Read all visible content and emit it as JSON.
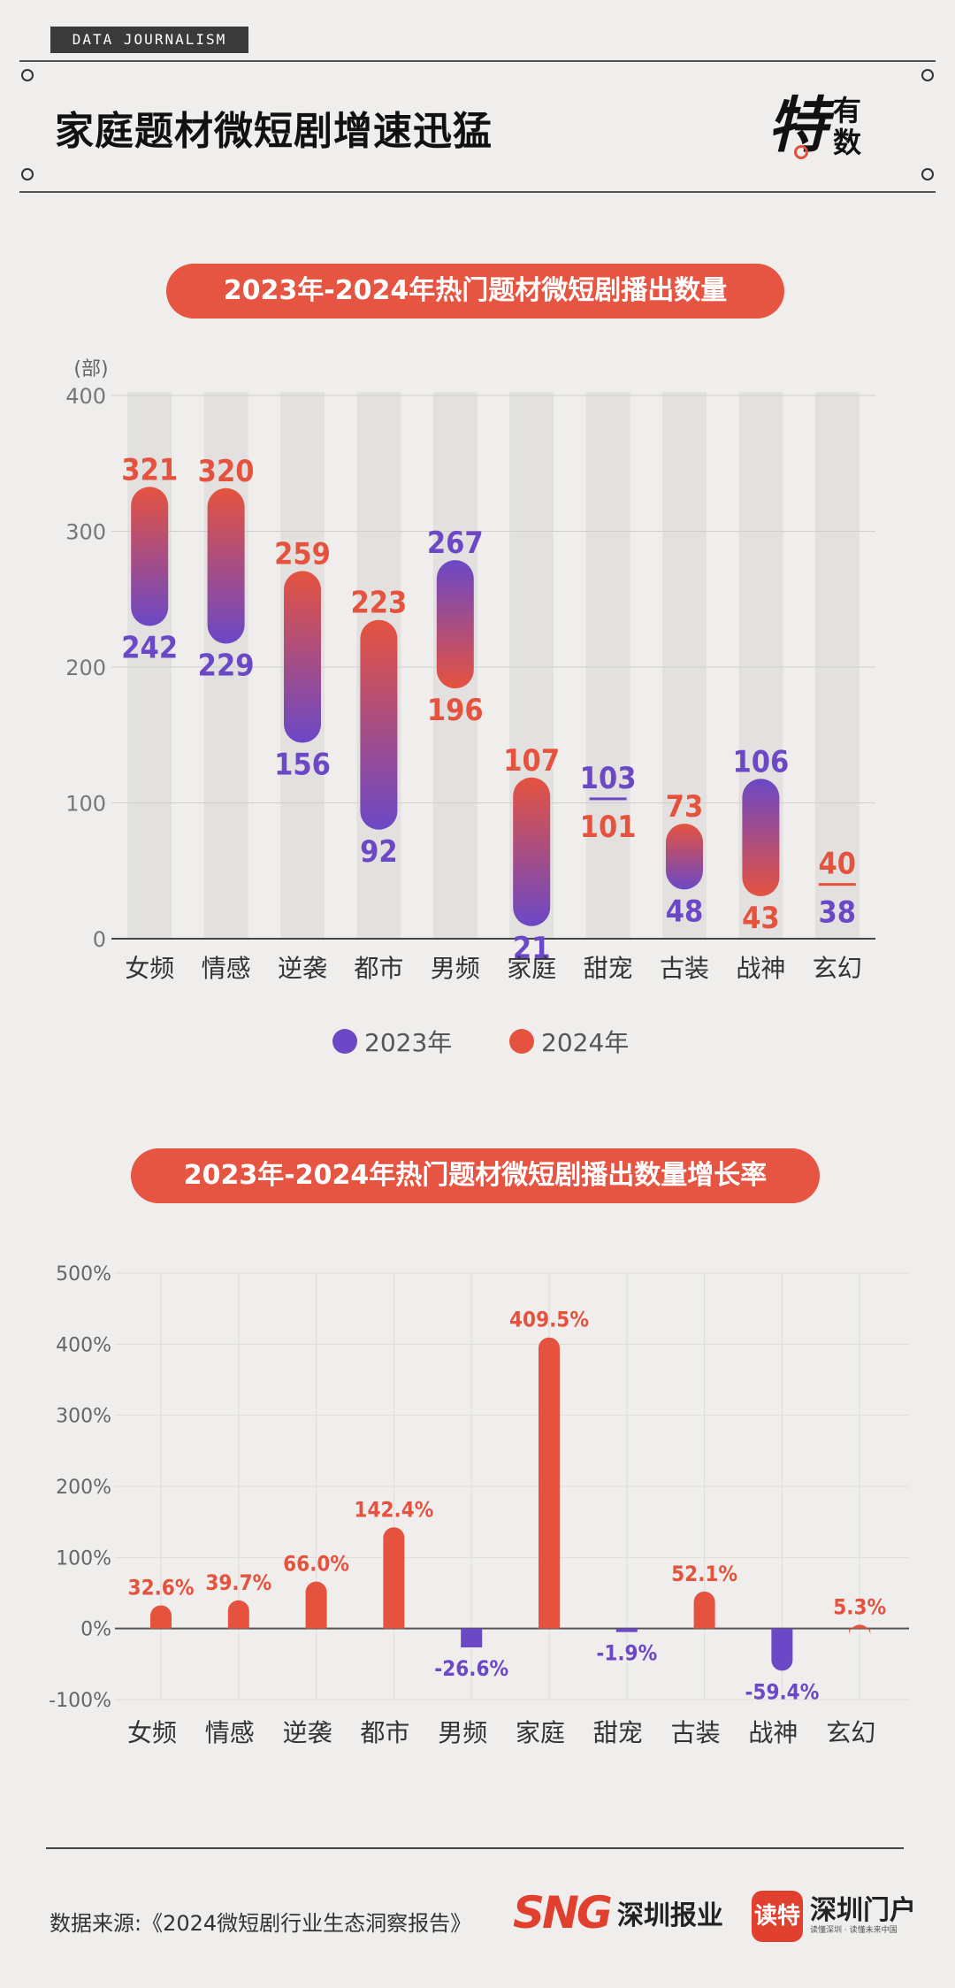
{
  "header": {
    "tag": "DATA  JOURNALISM",
    "title": "家庭题材微短剧增速迅猛",
    "brand_big": "特",
    "brand_small_1": "有",
    "brand_small_2": "数"
  },
  "colors": {
    "accent": "#e65442",
    "series_2023": "#6b48c6",
    "series_2024": "#e5533f",
    "negative_bar": "#6b48c6",
    "track": "#e2e1df"
  },
  "chart_data": [
    {
      "type": "dumbbell",
      "title": "2023年-2024年热门题材微短剧播出数量",
      "ylabel": "(部)",
      "ylim": [
        0,
        400
      ],
      "yticks": [
        0,
        100,
        200,
        300,
        400
      ],
      "grid": true,
      "legend_position": "bottom",
      "categories": [
        "女频",
        "情感",
        "逆袭",
        "都市",
        "男频",
        "家庭",
        "甜宠",
        "古装",
        "战神",
        "玄幻"
      ],
      "series": [
        {
          "name": "2023年",
          "values": [
            242,
            229,
            156,
            92,
            267,
            21,
            103,
            48,
            106,
            38
          ]
        },
        {
          "name": "2024年",
          "values": [
            321,
            320,
            259,
            223,
            196,
            107,
            101,
            73,
            43,
            40
          ]
        }
      ]
    },
    {
      "type": "bar",
      "title": "2023年-2024年热门题材微短剧播出数量增长率",
      "ylim": [
        -100,
        500
      ],
      "yticks": [
        -100,
        0,
        100,
        200,
        300,
        400,
        500
      ],
      "ytick_suffix": "%",
      "grid": true,
      "categories": [
        "女频",
        "情感",
        "逆袭",
        "都市",
        "男频",
        "家庭",
        "甜宠",
        "古装",
        "战神",
        "玄幻"
      ],
      "values": [
        32.6,
        39.7,
        66.0,
        142.4,
        -26.6,
        409.5,
        -1.9,
        52.1,
        -59.4,
        5.3
      ],
      "labels": [
        "32.6%",
        "39.7%",
        "66.0%",
        "142.4%",
        "-26.6%",
        "409.5%",
        "-1.9%",
        "52.1%",
        "-59.4%",
        "5.3%"
      ]
    }
  ],
  "footer": {
    "source": "数据来源:《2024微短剧行业生态洞察报告》",
    "sng_mark": "SNG",
    "sng_name": "深圳报业",
    "dute_mark": "读特",
    "dute_name": "深圳门户",
    "dute_slogan": "读懂深圳 · 读懂未来中国"
  }
}
